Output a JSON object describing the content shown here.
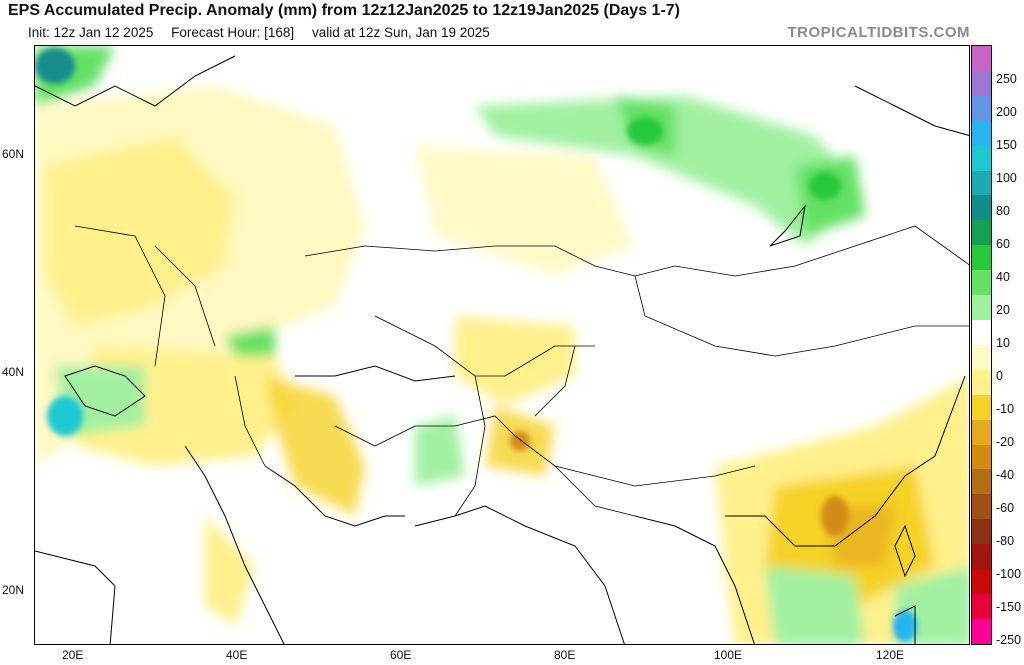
{
  "header": {
    "title": "EPS Accumulated Precip. Anomaly (mm) from 12z12Jan2025 to 12z19Jan2025 (Days 1-7)",
    "init": "Init: 12z Jan 12 2025",
    "forecast_hour": "Forecast Hour: [168]",
    "valid": "valid at 12z Sun, Jan 19 2025",
    "brand": "TROPICALTIDBITS.COM"
  },
  "map": {
    "lat_labels": [
      "60N",
      "40N",
      "20N"
    ],
    "lon_labels": [
      "20E",
      "40E",
      "60E",
      "80E",
      "100E",
      "120E"
    ]
  },
  "colorbar": {
    "labels": [
      "250",
      "200",
      "150",
      "100",
      "80",
      "60",
      "40",
      "20",
      "10",
      "0",
      "-10",
      "-20",
      "-40",
      "-60",
      "-80",
      "-100",
      "-150",
      "-250"
    ],
    "colors": [
      "#c864c8",
      "#9a78d2",
      "#6496e6",
      "#28b4f0",
      "#1ec8d2",
      "#1eaab4",
      "#148c8c",
      "#14a050",
      "#28c83c",
      "#64e064",
      "#a0f0a0",
      "#ffffff",
      "#fffac8",
      "#fff08c",
      "#f5d228",
      "#e6aa1e",
      "#d28c14",
      "#b46e14",
      "#a05014",
      "#8c3214",
      "#a01414",
      "#c80a0a",
      "#e6003c",
      "#ff0096"
    ],
    "accent_title": "#111111"
  }
}
